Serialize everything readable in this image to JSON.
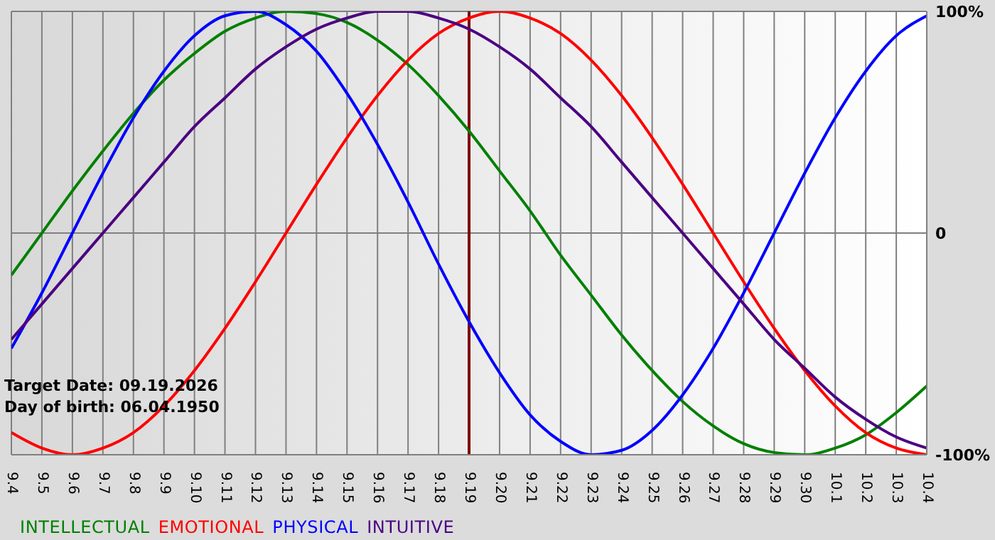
{
  "chart_data": {
    "type": "line",
    "categories": [
      "9.4",
      "9.5",
      "9.6",
      "9.7",
      "9.8",
      "9.9",
      "9.10",
      "9.11",
      "9.12",
      "9.13",
      "9.14",
      "9.15",
      "9.16",
      "9.17",
      "9.18",
      "9.19",
      "9.20",
      "9.21",
      "9.22",
      "9.23",
      "9.24",
      "9.25",
      "9.26",
      "9.27",
      "9.28",
      "9.29",
      "9.30",
      "10.1",
      "10.2",
      "10.3",
      "10.4"
    ],
    "series": [
      {
        "name": "INTELLECTUAL",
        "color": "#008000",
        "values": [
          -19,
          0,
          19,
          37,
          54,
          69,
          81,
          91,
          97,
          100,
          99,
          95,
          87,
          76,
          62,
          46,
          28,
          10,
          -10,
          -28,
          -46,
          -62,
          -76,
          -87,
          -95,
          -99,
          -100,
          -97,
          -91,
          -81,
          -69
        ]
      },
      {
        "name": "EMOTIONAL",
        "color": "#ff0000",
        "values": [
          -90,
          -97,
          -100,
          -97,
          -90,
          -78,
          -62,
          -43,
          -22,
          0,
          22,
          43,
          62,
          78,
          90,
          97,
          100,
          97,
          90,
          78,
          62,
          43,
          22,
          0,
          -22,
          -43,
          -62,
          -78,
          -90,
          -97,
          -100
        ]
      },
      {
        "name": "PHYSICAL",
        "color": "#0000ff",
        "values": [
          -52,
          -27,
          0,
          27,
          52,
          73,
          89,
          98,
          100,
          94,
          82,
          63,
          40,
          14,
          -14,
          -40,
          -63,
          -82,
          -94,
          -100,
          -98,
          -89,
          -73,
          -52,
          -27,
          0,
          27,
          52,
          73,
          89,
          98
        ]
      },
      {
        "name": "INTUITIVE",
        "color": "#4b0082",
        "values": [
          -48,
          -32,
          -16,
          0,
          16,
          32,
          48,
          61,
          74,
          84,
          92,
          97,
          100,
          100,
          97,
          92,
          84,
          74,
          61,
          48,
          32,
          16,
          0,
          -16,
          -32,
          -48,
          -61,
          -74,
          -84,
          -92,
          -97
        ]
      }
    ],
    "ylim": [
      -100,
      100
    ],
    "yticks": [
      {
        "value": 100,
        "label": "100%"
      },
      0,
      {
        "value": -100,
        "label": "-100%"
      }
    ],
    "ref_lines": [
      {
        "axis": "x",
        "value": "9.19",
        "color": "#800000"
      }
    ],
    "annotations": [
      "Target Date: 09.19.2026",
      "Day of birth: 06.04.1950"
    ],
    "grid": true,
    "legend": "bottom",
    "marker": "none",
    "line_style": "solid"
  }
}
